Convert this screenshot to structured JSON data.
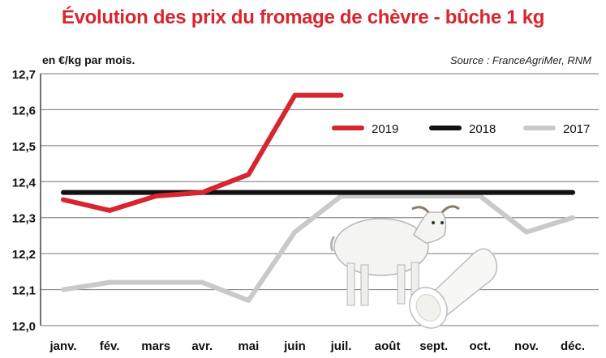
{
  "header": {
    "title": "Évolution des prix du fromage de chèvre - bûche 1 kg",
    "unit": "en €/kg par mois.",
    "source": "Source : FranceAgriMer, RNM"
  },
  "colors": {
    "s2019": "#d6262f",
    "s2018": "#111111",
    "s2017": "#c9c9c9",
    "grid": "#777777",
    "title": "#d6262f"
  },
  "illustration": {
    "name": "goat-and-cheese-log"
  },
  "chart_data": {
    "type": "line",
    "title": "Évolution des prix du fromage de chèvre - bûche 1 kg",
    "ylabel": "en €/kg par mois.",
    "xlabel": "",
    "categories": [
      "janv.",
      "fév.",
      "mars",
      "avr.",
      "mai",
      "juin",
      "juil.",
      "août",
      "sept.",
      "oct.",
      "nov.",
      "déc."
    ],
    "ylim": [
      12.0,
      12.7
    ],
    "yticks": [
      12.0,
      12.1,
      12.2,
      12.3,
      12.4,
      12.5,
      12.6,
      12.7
    ],
    "ytick_labels": [
      "12,0",
      "12,1",
      "12,2",
      "12,3",
      "12,4",
      "12,5",
      "12,6",
      "12,7"
    ],
    "grid": "horizontal",
    "legend_position": "upper-right",
    "series": [
      {
        "name": "2019",
        "color": "#d6262f",
        "values": [
          12.35,
          12.32,
          12.36,
          12.37,
          12.42,
          12.64,
          12.64,
          null,
          null,
          null,
          null,
          null
        ]
      },
      {
        "name": "2018",
        "color": "#111111",
        "values": [
          12.37,
          12.37,
          12.37,
          12.37,
          12.37,
          12.37,
          12.37,
          12.37,
          12.37,
          12.37,
          12.37,
          12.37
        ]
      },
      {
        "name": "2017",
        "color": "#c9c9c9",
        "values": [
          12.1,
          12.12,
          12.12,
          12.12,
          12.07,
          12.26,
          12.36,
          12.36,
          12.36,
          12.36,
          12.26,
          12.3
        ]
      }
    ]
  }
}
